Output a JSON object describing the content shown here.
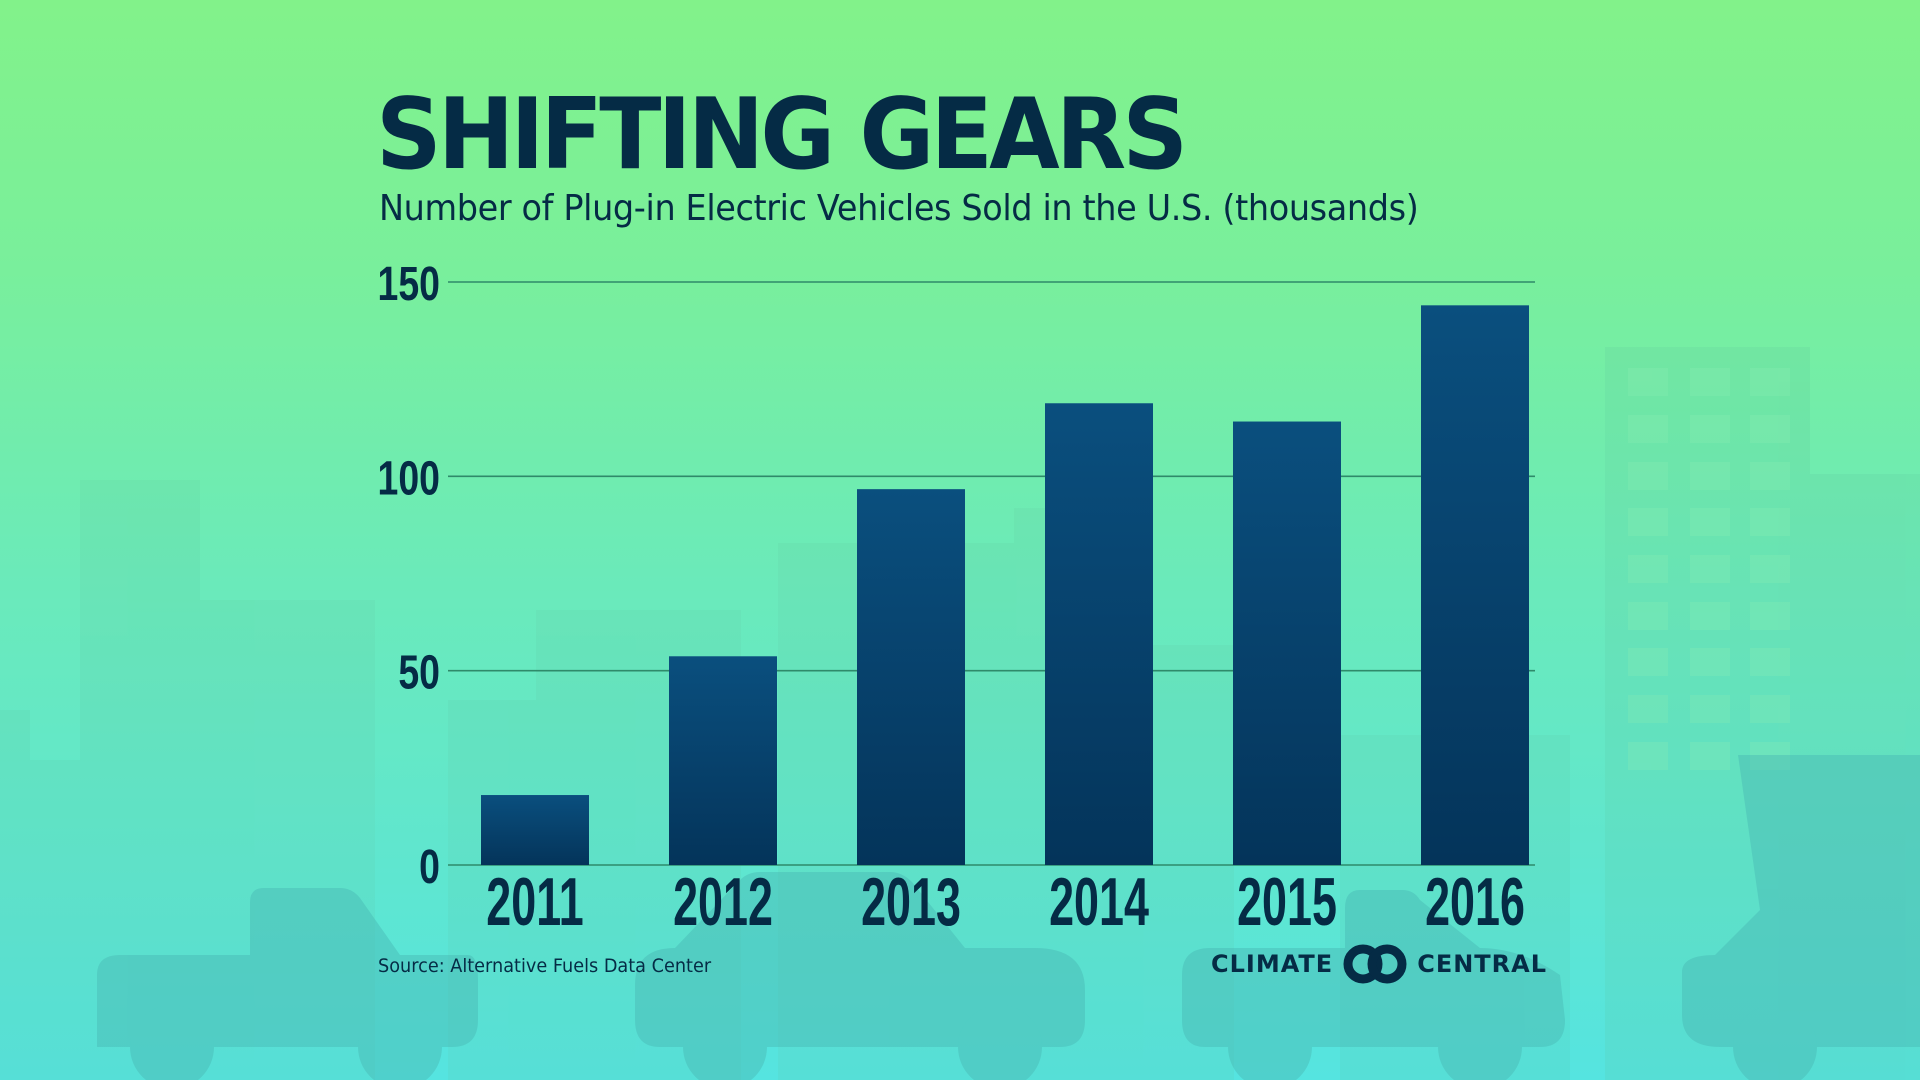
{
  "header": {
    "title": "SHIFTING GEARS",
    "subtitle": "Number of Plug-in Electric Vehicles Sold in the U.S. (thousands)"
  },
  "footer": {
    "source": "Source: Alternative Fuels Data Center",
    "brand_left": "CLIMATE",
    "brand_right": "CENTRAL",
    "brand_icon": "climate-central-rings-logo"
  },
  "colors": {
    "background_top": "#82f28a",
    "background_bottom": "#55e4e0",
    "bar_top": "#0a4f7e",
    "bar_bottom": "#04345a",
    "text": "#052b45",
    "gridline": "#2f8a6a"
  },
  "chart_data": {
    "type": "bar",
    "title": "SHIFTING GEARS",
    "subtitle": "Number of Plug-in Electric Vehicles Sold in the U.S. (thousands)",
    "xlabel": "",
    "ylabel": "",
    "categories": [
      "2011",
      "2012",
      "2013",
      "2014",
      "2015",
      "2016"
    ],
    "values": [
      18,
      53.7,
      96.7,
      118.8,
      114.1,
      144
    ],
    "ylim": [
      0,
      150
    ],
    "yticks": [
      0,
      50,
      100,
      150
    ],
    "ytick_labels": [
      "0",
      "50",
      "100",
      "150"
    ],
    "grid": true,
    "legend": "none",
    "source": "Source: Alternative Fuels Data Center"
  }
}
